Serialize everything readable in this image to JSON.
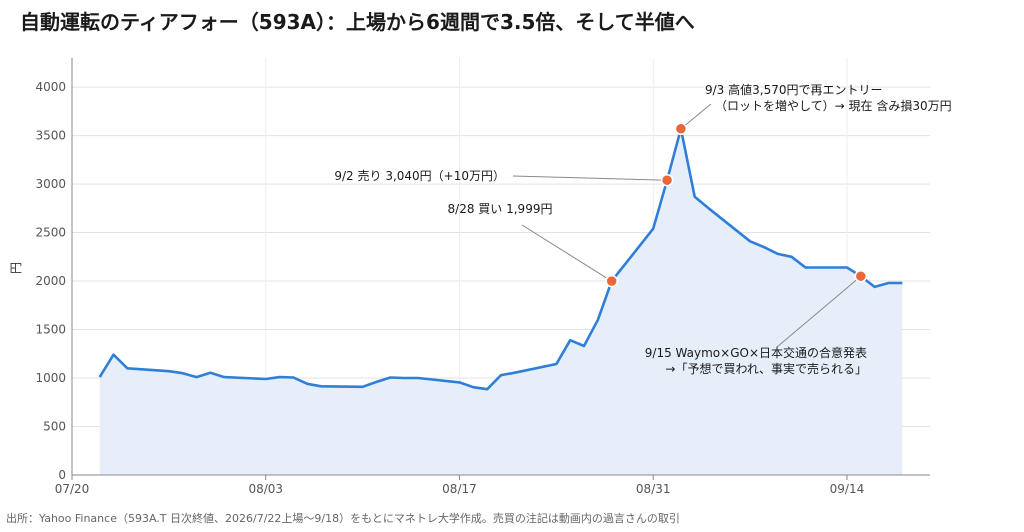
{
  "chart_data": {
    "type": "area",
    "title": "自動運転のティアフォー（593A）：上場から6週間で3.5倍、そして半値へ",
    "ylabel": "円",
    "xlabel": "",
    "ylim": [
      0,
      4300
    ],
    "yticks": [
      0,
      500,
      1000,
      1500,
      2000,
      2500,
      3000,
      3500,
      4000
    ],
    "xaxis_start": "2026-07-20",
    "xaxis_end": "2026-09-20",
    "xticks": [
      {
        "date": "2026-07-20",
        "label": "07/20"
      },
      {
        "date": "2026-08-03",
        "label": "08/03"
      },
      {
        "date": "2026-08-17",
        "label": "08/17"
      },
      {
        "date": "2026-08-31",
        "label": "08/31"
      },
      {
        "date": "2026-09-14",
        "label": "09/14"
      }
    ],
    "grid": true,
    "line_color": "#2f7ed8",
    "fill_color": "#e6eef9",
    "marker_color": "#e8683a",
    "series": [
      {
        "points": [
          {
            "x": "2026-07-22",
            "y": 1010
          },
          {
            "x": "2026-07-23",
            "y": 1240
          },
          {
            "x": "2026-07-24",
            "y": 1100
          },
          {
            "x": "2026-07-27",
            "y": 1070
          },
          {
            "x": "2026-07-28",
            "y": 1050
          },
          {
            "x": "2026-07-29",
            "y": 1010
          },
          {
            "x": "2026-07-30",
            "y": 1055
          },
          {
            "x": "2026-07-31",
            "y": 1010
          },
          {
            "x": "2026-08-03",
            "y": 990
          },
          {
            "x": "2026-08-04",
            "y": 1010
          },
          {
            "x": "2026-08-05",
            "y": 1005
          },
          {
            "x": "2026-08-06",
            "y": 940
          },
          {
            "x": "2026-08-07",
            "y": 915
          },
          {
            "x": "2026-08-10",
            "y": 910
          },
          {
            "x": "2026-08-11",
            "y": 960
          },
          {
            "x": "2026-08-12",
            "y": 1005
          },
          {
            "x": "2026-08-13",
            "y": 1000
          },
          {
            "x": "2026-08-14",
            "y": 1000
          },
          {
            "x": "2026-08-17",
            "y": 955
          },
          {
            "x": "2026-08-18",
            "y": 905
          },
          {
            "x": "2026-08-19",
            "y": 885
          },
          {
            "x": "2026-08-20",
            "y": 1030
          },
          {
            "x": "2026-08-21",
            "y": 1055
          },
          {
            "x": "2026-08-24",
            "y": 1145
          },
          {
            "x": "2026-08-25",
            "y": 1390
          },
          {
            "x": "2026-08-26",
            "y": 1330
          },
          {
            "x": "2026-08-27",
            "y": 1600
          },
          {
            "x": "2026-08-28",
            "y": 1999
          },
          {
            "x": "2026-08-31",
            "y": 2540
          },
          {
            "x": "2026-09-01",
            "y": 3040
          },
          {
            "x": "2026-09-02",
            "y": 3570
          },
          {
            "x": "2026-09-03",
            "y": 2870
          },
          {
            "x": "2026-09-04",
            "y": 2750
          },
          {
            "x": "2026-09-07",
            "y": 2410
          },
          {
            "x": "2026-09-08",
            "y": 2350
          },
          {
            "x": "2026-09-09",
            "y": 2280
          },
          {
            "x": "2026-09-10",
            "y": 2250
          },
          {
            "x": "2026-09-11",
            "y": 2140
          },
          {
            "x": "2026-09-14",
            "y": 2140
          },
          {
            "x": "2026-09-15",
            "y": 2050
          },
          {
            "x": "2026-09-16",
            "y": 1940
          },
          {
            "x": "2026-09-17",
            "y": 1980
          },
          {
            "x": "2026-09-18",
            "y": 1980
          }
        ]
      }
    ],
    "annotations": [
      {
        "point": {
          "x": "2026-08-28",
          "y": 1999
        },
        "lines": [
          "8/28 買い 1,999円"
        ],
        "align": "middle"
      },
      {
        "point": {
          "x": "2026-09-01",
          "y": 3040
        },
        "lines": [
          "9/2 売り 3,040円（+10万円）"
        ],
        "align": "end"
      },
      {
        "point": {
          "x": "2026-09-02",
          "y": 3570
        },
        "lines": [
          "9/3 高値3,570円で再エントリー",
          "（ロットを増やして）→ 現在 含み損30万円"
        ],
        "align": "start"
      },
      {
        "point": {
          "x": "2026-09-15",
          "y": 2050
        },
        "lines": [
          "9/15 Waymo×GO×日本交通の合意発表",
          "→「予想で買われ、事実で売られる」"
        ],
        "align": "end"
      }
    ]
  },
  "source_note": "出所：Yahoo Finance（593A.T 日次終値、2026/7/22上場〜9/18）をもとにマネトレ大学作成。売買の注記は動画内の過言さんの取引"
}
